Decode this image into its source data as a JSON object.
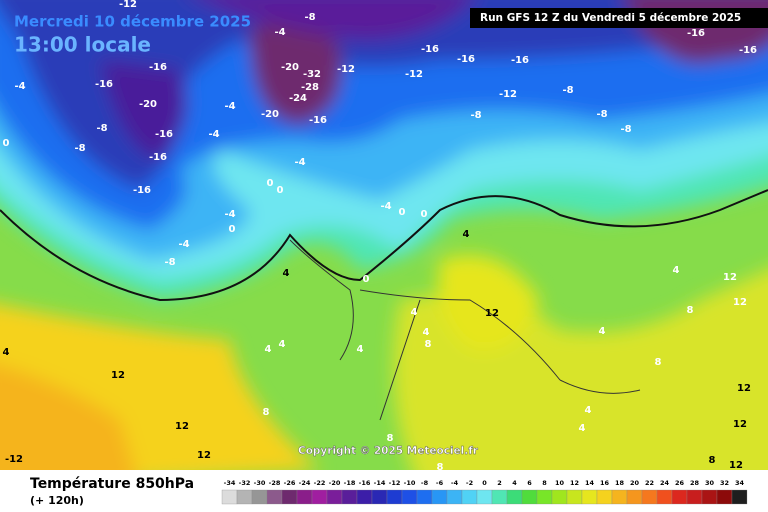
{
  "header": {
    "date": "Mercredi 10 décembre 2025",
    "time": "13:00 locale",
    "run": "Run GFS 12 Z du Vendredi 5 décembre 2025"
  },
  "copyright": "Copyright © 2025 Meteociel.fr",
  "footer": {
    "title": "Température 850hPa",
    "lead": "(+ 120h)"
  },
  "scale": {
    "labels": [
      -34,
      -32,
      -30,
      -28,
      -26,
      -24,
      -22,
      -20,
      -18,
      -16,
      -14,
      -12,
      -10,
      -8,
      -6,
      -4,
      -2,
      0,
      2,
      4,
      6,
      8,
      10,
      12,
      14,
      16,
      18,
      20,
      22,
      24,
      26,
      28,
      30,
      32,
      34
    ],
    "colors": [
      "#dcdcdc",
      "#b4b4b4",
      "#969696",
      "#8c5a8c",
      "#6e2a6e",
      "#8a1e8a",
      "#a01ea0",
      "#7a1e9a",
      "#5a1e9a",
      "#3c1ea8",
      "#2a28b4",
      "#1e3cd2",
      "#1e50e6",
      "#1e6ef0",
      "#2896f5",
      "#3cb4f5",
      "#50d2f5",
      "#6ee6f0",
      "#50e6b4",
      "#3cdc78",
      "#50dc3c",
      "#78e628",
      "#a0e61e",
      "#c8e61e",
      "#e6e61e",
      "#f5d21e",
      "#f5b41e",
      "#f5961e",
      "#f5781e",
      "#f0501e",
      "#dc281e",
      "#c81e1e",
      "#aa1414",
      "#8c0a0a",
      "#1e1e1e"
    ]
  },
  "contour_labels": [
    -12,
    -8,
    -4,
    -16,
    -16,
    -4,
    -20,
    -8,
    -16,
    -8,
    -16,
    -16,
    -4,
    -4,
    -20,
    -32,
    -28,
    -24,
    -20,
    -16,
    -12,
    -16,
    -12,
    -16,
    -16,
    -12,
    -8,
    -8,
    -8,
    -8,
    -16,
    -16,
    -4,
    0,
    0,
    -4,
    0,
    -4,
    -8,
    -4,
    0,
    0,
    4,
    4,
    0,
    12,
    4,
    4,
    4,
    4,
    4,
    8,
    4,
    4,
    12,
    8,
    12,
    8,
    12,
    12,
    12,
    -12,
    8,
    8,
    8,
    4,
    4,
    12,
    12,
    12,
    8,
    0,
    4
  ]
}
